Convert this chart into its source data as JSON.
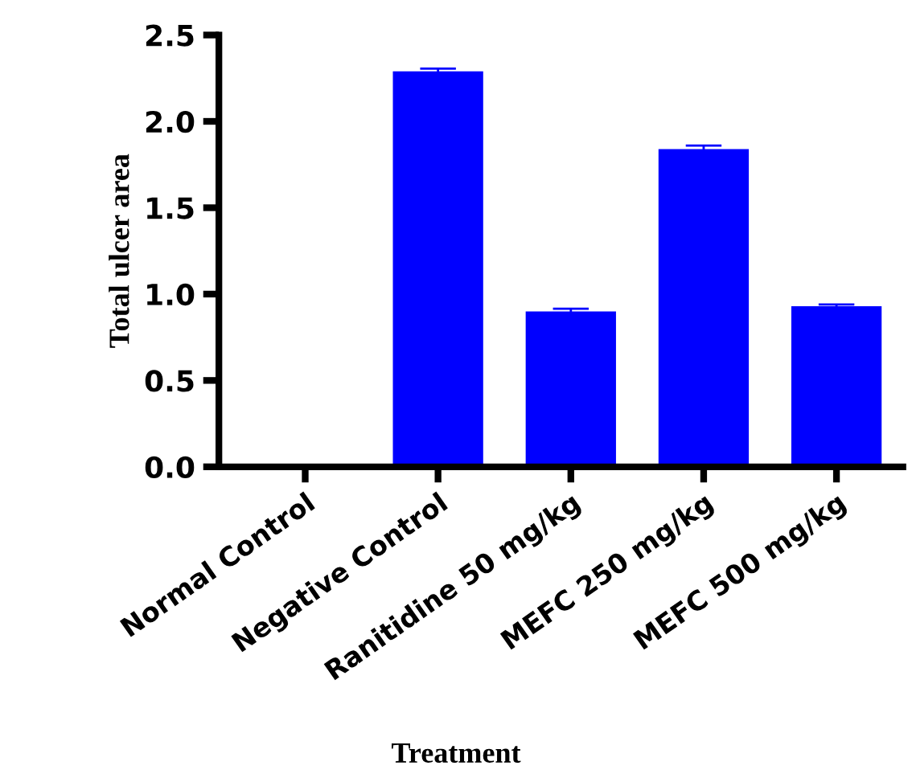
{
  "chart_data": {
    "type": "bar",
    "xlabel": "Treatment",
    "ylabel": "Total ulcer area",
    "categories": [
      "Normal Control",
      "Negative Control",
      "Ranitidine 50 mg/kg",
      "MEFC 250 mg/kg",
      "MEFC 500 mg/kg"
    ],
    "values": [
      0,
      2.29,
      0.9,
      1.84,
      0.93
    ],
    "errors": [
      null,
      0.015,
      0.015,
      0.02,
      0.01
    ],
    "color": "#0000ff",
    "ylim": [
      0,
      2.5
    ],
    "yticks": [
      {
        "value": 0,
        "label": "0.0"
      },
      {
        "value": 0.5,
        "label": "0.5"
      },
      {
        "value": 1.0,
        "label": "1.0"
      },
      {
        "value": 1.5,
        "label": "1.5"
      },
      {
        "value": 2.0,
        "label": "2.0"
      },
      {
        "value": 2.5,
        "label": "2.5"
      }
    ],
    "grid": false,
    "legend": false
  }
}
